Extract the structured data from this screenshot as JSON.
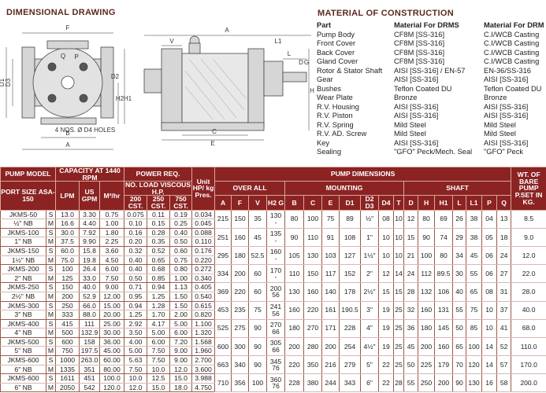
{
  "drawing": {
    "title": "DIMENSIONAL DRAWING",
    "labels": [
      "F",
      "P",
      "Q",
      "D1",
      "D3",
      "D2",
      "H2",
      "H1",
      "B",
      "A",
      "4 NOS. Ø D4 HOLES",
      "V",
      "A",
      "L1",
      "L",
      "D",
      "G",
      "H",
      "C",
      "E"
    ]
  },
  "materials": {
    "title": "MATERIAL OF CONSTRUCTION",
    "header": [
      "Part",
      "Material For DRMS",
      "Material For DRM"
    ],
    "rows": [
      [
        "Pump Body",
        "CF8M [SS-316]",
        "C.I/WCB Casting"
      ],
      [
        "Front Cover",
        "CF8M [SS-316]",
        "C.I/WCB Casting"
      ],
      [
        "Back Cover",
        "CF8M [SS-316]",
        "C.I/WCB Casting"
      ],
      [
        "Gland Cover",
        "CF8M [SS-316]",
        "C.I/WCB Casting"
      ],
      [
        "Rotor & Stator Shaft",
        "AISI [SS-316] / EN-57",
        "EN-36/SS-316"
      ],
      [
        "Gear",
        "AISI [SS-316]",
        "AISI [SS-316]"
      ],
      [
        "Bushes",
        "Teflon Coated DU",
        "Teflon Coated DU"
      ],
      [
        "Wear Plate",
        "Bronze",
        "Bronze"
      ],
      [
        "R.V. Housing",
        "AISI [SS-316]",
        "AISI [SS-316]"
      ],
      [
        "R.V. Piston",
        "AISI [SS-316]",
        "AISI [SS-316]"
      ],
      [
        "R.V. Spring",
        "Mild Steel",
        "Mild Steel"
      ],
      [
        "R.V. AD. Screw",
        "Mild Steel",
        "Mild Steel"
      ],
      [
        "Key",
        "AISI [SS-316]",
        "AISI [SS-316]"
      ],
      [
        "Sealing",
        "\"GFO\" Peck/Mech. Seal",
        "\"GFO\" Peck"
      ]
    ]
  },
  "table": {
    "header": {
      "model": "PUMP MODEL",
      "port": "PORT SIZE ASA-150",
      "capacity": "CAPACITY AT 1440 RPM",
      "lpm": "LPM",
      "gpm": "US GPM",
      "m3": "M³/hr",
      "power": "POWER REQ.",
      "viscous": "NO. LOAD VISCOUS H.P.",
      "cst": [
        "200 CST.",
        "250 CST.",
        "750 CST."
      ],
      "unit": "Unit HP/ kg Pres.",
      "dims": "PUMP DIMENSIONS",
      "overall": "OVER ALL",
      "mounting": "MOUNTING",
      "shaft": "SHAFT",
      "wt": "WT. OF BARE PUMP P.SET IN KG.",
      "overall_cols": [
        "A",
        "F",
        "V",
        "H2 G"
      ],
      "mounting_cols": [
        "B",
        "C",
        "E",
        "D1",
        "D2 D3",
        "D4",
        "T"
      ],
      "shaft_cols": [
        "D",
        "H",
        "H1",
        "L",
        "L1",
        "P",
        "Q"
      ]
    },
    "rows": [
      {
        "model": "JKMS-50",
        "port": "½\" NB",
        "s": {
          "label": "S",
          "values": [
            "13.0",
            "3.30",
            "0.75",
            "0.075",
            "0.11",
            "0.19",
            "0.034"
          ]
        },
        "m": {
          "label": "M",
          "values": [
            "16.6",
            "4.40",
            "1.00",
            "0.10",
            "0.15",
            "0.25",
            "0.045"
          ]
        },
        "overall": [
          "215",
          "150",
          "35"
        ],
        "h2g": [
          "130",
          "-"
        ],
        "mounting": [
          "80",
          "100",
          "75",
          "89",
          "½\"",
          "08",
          "10"
        ],
        "shaft": [
          "12",
          "80",
          "69",
          "26",
          "38",
          "04",
          "13"
        ],
        "wt": "8.5"
      },
      {
        "model": "JKMS-100",
        "port": "1\" NB",
        "s": {
          "label": "S",
          "values": [
            "30.0",
            "7.92",
            "1.80",
            "0.16",
            "0.28",
            "0.40",
            "0.088"
          ]
        },
        "m": {
          "label": "M",
          "values": [
            "37.5",
            "9.90",
            "2.25",
            "0.20",
            "0.35",
            "0.50",
            "0.110"
          ]
        },
        "overall": [
          "251",
          "160",
          "45"
        ],
        "h2g": [
          "135",
          "-"
        ],
        "mounting": [
          "90",
          "110",
          "91",
          "108",
          "1\"",
          "10",
          "10"
        ],
        "shaft": [
          "15",
          "90",
          "74",
          "29",
          "38",
          "05",
          "18"
        ],
        "wt": "9.0"
      },
      {
        "model": "JKMS-150",
        "port": "1½\" NB",
        "s": {
          "label": "S",
          "values": [
            "60.0",
            "15.8",
            "3.60",
            "0.32",
            "0.52",
            "0.60",
            "0.176"
          ]
        },
        "m": {
          "label": "M",
          "values": [
            "75.0",
            "19.8",
            "4.50",
            "0.40",
            "0.65",
            "0.75",
            "0.220"
          ]
        },
        "overall": [
          "295",
          "180",
          "52.5"
        ],
        "h2g": [
          "160",
          "-"
        ],
        "mounting": [
          "105",
          "130",
          "103",
          "127",
          "1½\"",
          "10",
          "10"
        ],
        "shaft": [
          "21",
          "100",
          "80",
          "34",
          "45",
          "06",
          "24"
        ],
        "wt": "12.0"
      },
      {
        "model": "JKMS-200",
        "port": "2\" NB",
        "s": {
          "label": "S",
          "values": [
            "100",
            "26.4",
            "6.00",
            "0.40",
            "0.68",
            "0.80",
            "0.272"
          ]
        },
        "m": {
          "label": "M",
          "values": [
            "125",
            "33.0",
            "7.50",
            "0.50",
            "0.85",
            "1.00",
            "0.340"
          ]
        },
        "overall": [
          "334",
          "200",
          "60"
        ],
        "h2g": [
          "170",
          "-"
        ],
        "mounting": [
          "110",
          "150",
          "117",
          "152",
          "2\"",
          "12",
          "14"
        ],
        "shaft": [
          "24",
          "112",
          "89.5",
          "30",
          "55",
          "06",
          "27"
        ],
        "wt": "22.0"
      },
      {
        "model": "JKMS-250",
        "port": "2½\" NB",
        "s": {
          "label": "S",
          "values": [
            "150",
            "40.0",
            "9.00",
            "0.71",
            "0.94",
            "1.13",
            "0.405"
          ]
        },
        "m": {
          "label": "M",
          "values": [
            "200",
            "52.9",
            "12.00",
            "0.95",
            "1.25",
            "1.50",
            "0.540"
          ]
        },
        "overall": [
          "369",
          "220",
          "60"
        ],
        "h2g": [
          "200",
          "56"
        ],
        "mounting": [
          "130",
          "160",
          "140",
          "178",
          "2½\"",
          "15",
          "15"
        ],
        "shaft": [
          "28",
          "132",
          "106",
          "40",
          "65",
          "08",
          "31"
        ],
        "wt": "28.0"
      },
      {
        "model": "JKMS-300",
        "port": "3\" NB",
        "s": {
          "label": "S",
          "values": [
            "250",
            "66.0",
            "15.00",
            "0.94",
            "1.28",
            "1.50",
            "0.615"
          ]
        },
        "m": {
          "label": "M",
          "values": [
            "333",
            "88.0",
            "20.00",
            "1.25",
            "1.70",
            "2.00",
            "0.820"
          ]
        },
        "overall": [
          "453",
          "235",
          "75"
        ],
        "h2g": [
          "241",
          "56"
        ],
        "mounting": [
          "160",
          "220",
          "161",
          "190.5",
          "3\"",
          "19",
          "25"
        ],
        "shaft": [
          "32",
          "160",
          "131",
          "55",
          "75",
          "10",
          "37"
        ],
        "wt": "40.0"
      },
      {
        "model": "JKMS-400",
        "port": "4\" NB",
        "s": {
          "label": "S",
          "values": [
            "415",
            "111",
            "25.00",
            "2.92",
            "4.17",
            "5.00",
            "1.100"
          ]
        },
        "m": {
          "label": "M",
          "values": [
            "500",
            "132.9",
            "30.00",
            "3.50",
            "5.00",
            "6.00",
            "1.320"
          ]
        },
        "overall": [
          "525",
          "275",
          "90"
        ],
        "h2g": [
          "270",
          "66"
        ],
        "mounting": [
          "180",
          "270",
          "171",
          "228",
          "4\"",
          "19",
          "25"
        ],
        "shaft": [
          "36",
          "180",
          "145",
          "50",
          "85",
          "10",
          "41"
        ],
        "wt": "68.0"
      },
      {
        "model": "JKMS-500",
        "port": "5\" NB",
        "s": {
          "label": "S",
          "values": [
            "600",
            "158",
            "36.00",
            "4.00",
            "6.00",
            "7.20",
            "1.568"
          ]
        },
        "m": {
          "label": "M",
          "values": [
            "750",
            "197.5",
            "45.00",
            "5.00",
            "7.50",
            "9.00",
            "1.960"
          ]
        },
        "overall": [
          "600",
          "300",
          "90"
        ],
        "h2g": [
          "305",
          "66"
        ],
        "mounting": [
          "200",
          "280",
          "200",
          "254",
          "4½\"",
          "19",
          "25"
        ],
        "shaft": [
          "45",
          "200",
          "160",
          "65",
          "100",
          "14",
          "52"
        ],
        "wt": "110.0"
      },
      {
        "model": "JKMS-600",
        "port": "6\" NB",
        "s": {
          "label": "S",
          "values": [
            "1000",
            "263.0",
            "60.00",
            "5.63",
            "7.50",
            "9.00",
            "2.700"
          ]
        },
        "m": {
          "label": "M",
          "values": [
            "1335",
            "351",
            "80.00",
            "7.50",
            "10.0",
            "12.0",
            "3.600"
          ]
        },
        "overall": [
          "663",
          "340",
          "90"
        ],
        "h2g": [
          "345",
          "76"
        ],
        "mounting": [
          "220",
          "350",
          "216",
          "279",
          "5\"",
          "22",
          "25"
        ],
        "shaft": [
          "50",
          "225",
          "179",
          "70",
          "120",
          "14",
          "57"
        ],
        "wt": "170.0"
      },
      {
        "model": "JKMS-600",
        "port": "6\" NB",
        "s": {
          "label": "S",
          "values": [
            "1611",
            "451",
            "100.0",
            "10.0",
            "12.5",
            "15.0",
            "3.988"
          ]
        },
        "m": {
          "label": "M",
          "values": [
            "2050",
            "542",
            "120.0",
            "12.0",
            "15.0",
            "18.0",
            "4.750"
          ]
        },
        "overall": [
          "710",
          "356",
          "100"
        ],
        "h2g": [
          "360",
          "76"
        ],
        "mounting": [
          "228",
          "380",
          "244",
          "343",
          "6\"",
          "22",
          "28"
        ],
        "shaft": [
          "55",
          "250",
          "200",
          "90",
          "130",
          "16",
          "58"
        ],
        "wt": "200.0"
      }
    ]
  }
}
